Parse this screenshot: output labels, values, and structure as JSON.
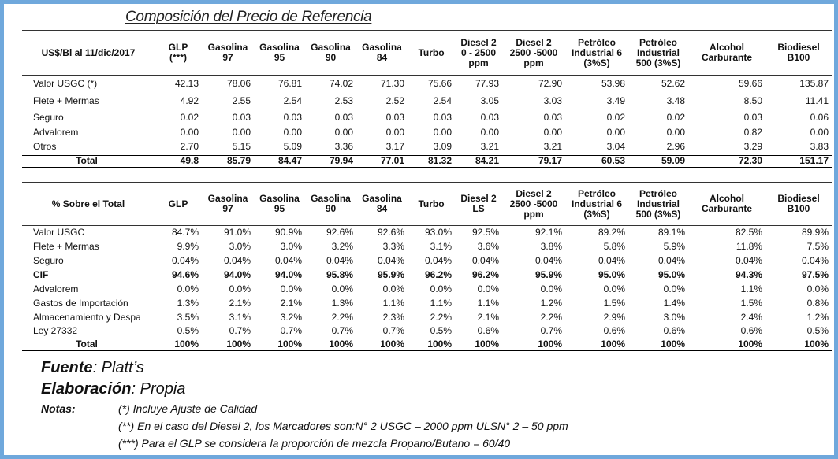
{
  "title": "Composición del Precio de Referencia",
  "table1": {
    "header_label": "US$/Bl al 11/dic/2017",
    "columns": [
      "GLP\n(***)",
      "Gasolina\n97",
      "Gasolina\n95",
      "Gasolina\n90",
      "Gasolina\n84",
      "Turbo",
      "Diesel 2\n0 - 2500\nppm",
      "Diesel 2\n2500 -5000\nppm",
      "Petróleo\nIndustrial 6\n(3%S)",
      "Petróleo\nIndustrial\n500 (3%S)",
      "Alcohol\nCarburante",
      "Biodiesel\nB100"
    ],
    "rows": [
      {
        "label": "Valor USGC (*)",
        "values": [
          "42.13",
          "78.06",
          "76.81",
          "74.02",
          "71.30",
          "75.66",
          "77.93",
          "72.90",
          "53.98",
          "52.62",
          "59.66",
          "135.87"
        ]
      },
      {
        "label": "Flete + Mermas",
        "values": [
          "4.92",
          "2.55",
          "2.54",
          "2.53",
          "2.52",
          "2.54",
          "3.05",
          "3.03",
          "3.49",
          "3.48",
          "8.50",
          "11.41"
        ]
      },
      {
        "label": "Seguro",
        "values": [
          "0.02",
          "0.03",
          "0.03",
          "0.03",
          "0.03",
          "0.03",
          "0.03",
          "0.03",
          "0.02",
          "0.02",
          "0.03",
          "0.06"
        ]
      },
      {
        "label": "Advalorem",
        "values": [
          "0.00",
          "0.00",
          "0.00",
          "0.00",
          "0.00",
          "0.00",
          "0.00",
          "0.00",
          "0.00",
          "0.00",
          "0.82",
          "0.00"
        ]
      },
      {
        "label": "Otros",
        "values": [
          "2.70",
          "5.15",
          "5.09",
          "3.36",
          "3.17",
          "3.09",
          "3.21",
          "3.21",
          "3.04",
          "2.96",
          "3.29",
          "3.83"
        ]
      }
    ],
    "total": {
      "label": "Total",
      "values": [
        "49.8",
        "85.79",
        "84.47",
        "79.94",
        "77.01",
        "81.32",
        "84.21",
        "79.17",
        "60.53",
        "59.09",
        "72.30",
        "151.17"
      ]
    }
  },
  "table2": {
    "header_label": "% Sobre el Total",
    "columns": [
      "GLP",
      "Gasolina\n97",
      "Gasolina\n95",
      "Gasolina\n90",
      "Gasolina\n84",
      "Turbo",
      "Diesel 2\nLS",
      "Diesel 2\n2500 -5000\nppm",
      "Petróleo\nIndustrial 6\n(3%S)",
      "Petróleo\nIndustrial\n500 (3%S)",
      "Alcohol\nCarburante",
      "Biodiesel\nB100"
    ],
    "rows": [
      {
        "label": "Valor USGC",
        "bold": false,
        "values": [
          "84.7%",
          "91.0%",
          "90.9%",
          "92.6%",
          "92.6%",
          "93.0%",
          "92.5%",
          "92.1%",
          "89.2%",
          "89.1%",
          "82.5%",
          "89.9%"
        ]
      },
      {
        "label": "Flete + Mermas",
        "bold": false,
        "values": [
          "9.9%",
          "3.0%",
          "3.0%",
          "3.2%",
          "3.3%",
          "3.1%",
          "3.6%",
          "3.8%",
          "5.8%",
          "5.9%",
          "11.8%",
          "7.5%"
        ]
      },
      {
        "label": "Seguro",
        "bold": false,
        "values": [
          "0.04%",
          "0.04%",
          "0.04%",
          "0.04%",
          "0.04%",
          "0.04%",
          "0.04%",
          "0.04%",
          "0.04%",
          "0.04%",
          "0.04%",
          "0.04%"
        ]
      },
      {
        "label": "CIF",
        "bold": true,
        "values": [
          "94.6%",
          "94.0%",
          "94.0%",
          "95.8%",
          "95.9%",
          "96.2%",
          "96.2%",
          "95.9%",
          "95.0%",
          "95.0%",
          "94.3%",
          "97.5%"
        ]
      },
      {
        "label": "Advalorem",
        "bold": false,
        "values": [
          "0.0%",
          "0.0%",
          "0.0%",
          "0.0%",
          "0.0%",
          "0.0%",
          "0.0%",
          "0.0%",
          "0.0%",
          "0.0%",
          "1.1%",
          "0.0%"
        ]
      },
      {
        "label": "Gastos de Importación",
        "bold": false,
        "values": [
          "1.3%",
          "2.1%",
          "2.1%",
          "1.3%",
          "1.1%",
          "1.1%",
          "1.1%",
          "1.2%",
          "1.5%",
          "1.4%",
          "1.5%",
          "0.8%"
        ]
      },
      {
        "label": "Almacenamiento y Despa",
        "bold": false,
        "values": [
          "3.5%",
          "3.1%",
          "3.2%",
          "2.2%",
          "2.3%",
          "2.2%",
          "2.1%",
          "2.2%",
          "2.9%",
          "3.0%",
          "2.4%",
          "1.2%"
        ]
      },
      {
        "label": "Ley 27332",
        "bold": false,
        "values": [
          "0.5%",
          "0.7%",
          "0.7%",
          "0.7%",
          "0.7%",
          "0.5%",
          "0.6%",
          "0.7%",
          "0.6%",
          "0.6%",
          "0.6%",
          "0.5%"
        ]
      }
    ],
    "total": {
      "label": "Total",
      "values": [
        "100%",
        "100%",
        "100%",
        "100%",
        "100%",
        "100%",
        "100%",
        "100%",
        "100%",
        "100%",
        "100%",
        "100%"
      ]
    }
  },
  "footer": {
    "fuente_label": "Fuente",
    "fuente_value": ": Platt’s",
    "elaboracion_label": "Elaboración",
    "elaboracion_value": ": Propia",
    "notas_label": "Notas:",
    "notes": [
      "(*) Incluye Ajuste de Calidad",
      "(**) En el caso del Diesel 2, los Marcadores son:N° 2 USGC – 2000 ppm ULSN° 2 – 50 ppm",
      "(***) Para el GLP se considera la proporción de mezcla Propano/Butano = 60/40"
    ]
  },
  "colors": {
    "frame_border": "#6fa8dc"
  }
}
